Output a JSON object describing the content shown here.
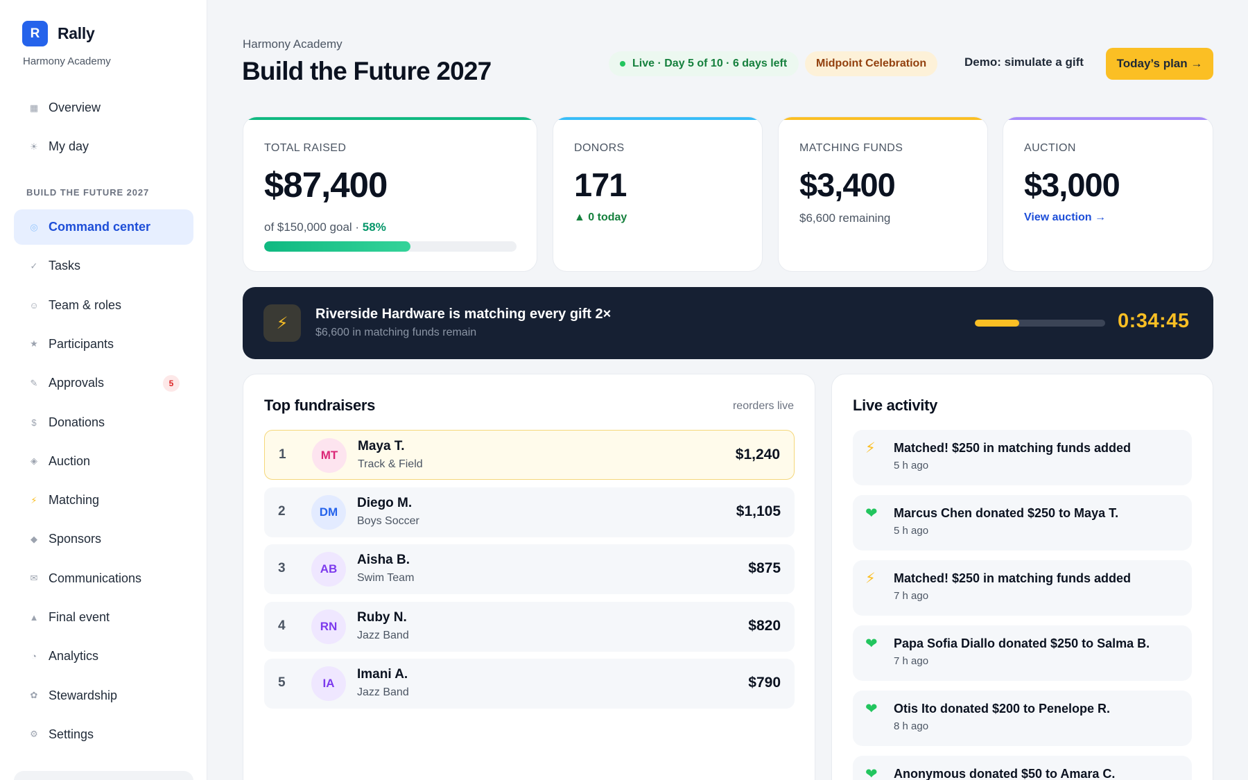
{
  "brand": {
    "logo_letter": "R",
    "name": "Rally",
    "org": "Harmony Academy"
  },
  "sidebar": {
    "top_items": [
      {
        "label": "Overview",
        "icon": "▦",
        "icon_name": "grid-icon"
      },
      {
        "label": "My day",
        "icon": "☀",
        "icon_name": "sun-icon"
      }
    ],
    "section_label": "BUILD THE FUTURE 2027",
    "items": [
      {
        "label": "Command center",
        "icon": "◎",
        "icon_name": "target-icon",
        "active": true
      },
      {
        "label": "Tasks",
        "icon": "✓",
        "icon_name": "check-icon"
      },
      {
        "label": "Team & roles",
        "icon": "☺",
        "icon_name": "people-icon"
      },
      {
        "label": "Participants",
        "icon": "★",
        "icon_name": "star-icon"
      },
      {
        "label": "Approvals",
        "icon": "✎",
        "icon_name": "pen-icon",
        "badge": "5"
      },
      {
        "label": "Donations",
        "icon": "$",
        "icon_name": "dollar-icon"
      },
      {
        "label": "Auction",
        "icon": "◈",
        "icon_name": "gavel-icon"
      },
      {
        "label": "Matching",
        "icon": "⚡",
        "icon_name": "bolt-icon"
      },
      {
        "label": "Sponsors",
        "icon": "◆",
        "icon_name": "diamond-icon"
      },
      {
        "label": "Communications",
        "icon": "✉",
        "icon_name": "mail-icon"
      },
      {
        "label": "Final event",
        "icon": "▲",
        "icon_name": "flag-icon"
      },
      {
        "label": "Analytics",
        "icon": "◔",
        "icon_name": "pie-icon"
      },
      {
        "label": "Stewardship",
        "icon": "✿",
        "icon_name": "flower-icon"
      },
      {
        "label": "Settings",
        "icon": "⚙",
        "icon_name": "gear-icon"
      }
    ]
  },
  "header": {
    "org": "Harmony Academy",
    "title": "Build the Future 2027",
    "live_pill": "Live · Day 5 of 10 · 6 days left",
    "milestone_pill": "Midpoint Celebration",
    "demo_link": "Demo: simulate a gift",
    "plan_button": "Today’s plan →"
  },
  "stats": {
    "total_raised": {
      "label": "TOTAL RAISED",
      "value": "$87,400",
      "goal_text": "of $150,000 goal · ",
      "percent_text": "58%",
      "progress": 0.58,
      "color": "#10b981"
    },
    "donors": {
      "label": "DONORS",
      "value": "171",
      "delta": "▲ 0 today",
      "color": "#38bdf8"
    },
    "matching": {
      "label": "MATCHING FUNDS",
      "value": "$3,400",
      "sub": "$6,600 remaining",
      "color": "#fbbf24"
    },
    "auction": {
      "label": "AUCTION",
      "value": "$3,000",
      "link": "View auction →",
      "color": "#a78bfa"
    }
  },
  "banner": {
    "icon": "⚡",
    "title": "Riverside Hardware is matching every gift 2×",
    "subtitle": "$6,600 in matching funds remain",
    "progress": 0.34,
    "timer": "0:34:45"
  },
  "fundraisers": {
    "title": "Top fundraisers",
    "hint": "reorders live",
    "rows": [
      {
        "rank": "1",
        "initials": "MT",
        "name": "Maya T.",
        "team": "Track & Field",
        "amount": "$1,240",
        "avatar_bg": "#fde4ef",
        "avatar_fg": "#db2777"
      },
      {
        "rank": "2",
        "initials": "DM",
        "name": "Diego M.",
        "team": "Boys Soccer",
        "amount": "$1,105",
        "avatar_bg": "#e3ebff",
        "avatar_fg": "#2563eb"
      },
      {
        "rank": "3",
        "initials": "AB",
        "name": "Aisha B.",
        "team": "Swim Team",
        "amount": "$875",
        "avatar_bg": "#efe7ff",
        "avatar_fg": "#7c3aed"
      },
      {
        "rank": "4",
        "initials": "RN",
        "name": "Ruby N.",
        "team": "Jazz Band",
        "amount": "$820",
        "avatar_bg": "#efe7ff",
        "avatar_fg": "#7c3aed"
      },
      {
        "rank": "5",
        "initials": "IA",
        "name": "Imani A.",
        "team": "Jazz Band",
        "amount": "$790",
        "avatar_bg": "#efe7ff",
        "avatar_fg": "#7c3aed"
      }
    ]
  },
  "activity": {
    "title": "Live activity",
    "items": [
      {
        "type": "bolt",
        "icon": "⚡",
        "text": "Matched! $250 in matching funds added",
        "time": "5 h ago"
      },
      {
        "type": "heart",
        "icon": "❤",
        "text": "Marcus Chen donated $250 to Maya T.",
        "time": "5 h ago"
      },
      {
        "type": "bolt",
        "icon": "⚡",
        "text": "Matched! $250 in matching funds added",
        "time": "7 h ago"
      },
      {
        "type": "heart",
        "icon": "❤",
        "text": "Papa Sofia Diallo donated $250 to Salma B.",
        "time": "7 h ago"
      },
      {
        "type": "heart",
        "icon": "❤",
        "text": "Otis Ito donated $200 to Penelope R.",
        "time": "8 h ago"
      },
      {
        "type": "heart",
        "icon": "❤",
        "text": "Anonymous donated $50 to Amara C.",
        "time": ""
      }
    ]
  }
}
